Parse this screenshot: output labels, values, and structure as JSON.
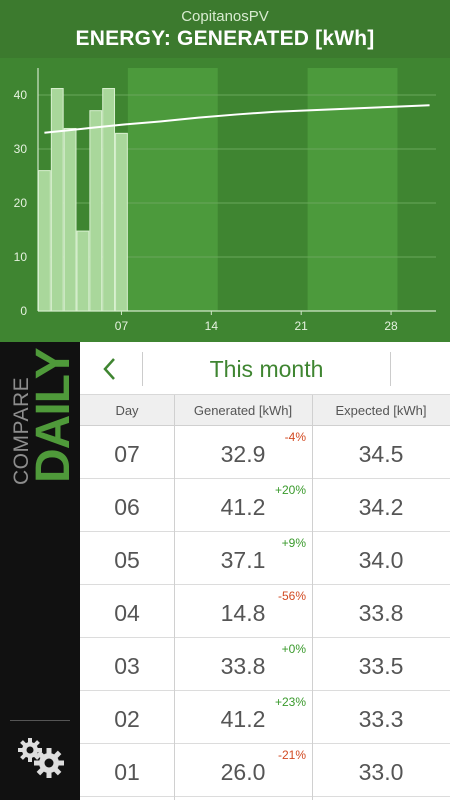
{
  "header": {
    "app_name": "CopitanosPV",
    "title": "ENERGY: GENERATED [kWh]"
  },
  "chart_data": {
    "type": "bar",
    "y_ticks": [
      "0",
      "10",
      "20",
      "30",
      "40"
    ],
    "x_ticks": [
      "07",
      "14",
      "21",
      "28"
    ],
    "ylim": [
      0,
      45
    ],
    "xlim": [
      0.5,
      31.5
    ],
    "days": [
      1,
      2,
      3,
      4,
      5,
      6,
      7
    ],
    "values": [
      26.0,
      41.2,
      33.8,
      14.8,
      37.1,
      41.2,
      32.9
    ],
    "expected_trend": {
      "x": [
        1,
        3,
        5,
        7,
        10,
        13,
        16,
        19,
        22,
        25,
        28,
        31
      ],
      "y": [
        33.0,
        33.5,
        34.0,
        34.5,
        35.1,
        35.8,
        36.4,
        36.9,
        37.2,
        37.5,
        37.8,
        38.1
      ]
    },
    "shaded_weeks": [
      [
        8,
        14
      ],
      [
        22,
        28
      ]
    ],
    "grid": true,
    "colors": {
      "bar_fill": "#a9d79b",
      "bar_edge": "#d9f0d0",
      "trend": "#ffffff",
      "plot_bg": "#3f8531",
      "shade": "#4c9a3c"
    }
  },
  "sidebar": {
    "compare_label": "COMPARE",
    "mode_label": "DAILY",
    "settings_icon": "gears-icon"
  },
  "nav": {
    "back_icon": "chevron-left-icon",
    "period_label": "This month"
  },
  "table": {
    "columns": [
      "Day",
      "Generated [kWh]",
      "Expected [kWh]"
    ],
    "rows": [
      {
        "day": "07",
        "generated": "32.9",
        "diff": "-4%",
        "sign": "neg",
        "expected": "34.5"
      },
      {
        "day": "06",
        "generated": "41.2",
        "diff": "+20%",
        "sign": "pos",
        "expected": "34.2"
      },
      {
        "day": "05",
        "generated": "37.1",
        "diff": "+9%",
        "sign": "pos",
        "expected": "34.0"
      },
      {
        "day": "04",
        "generated": "14.8",
        "diff": "-56%",
        "sign": "neg",
        "expected": "33.8"
      },
      {
        "day": "03",
        "generated": "33.8",
        "diff": "+0%",
        "sign": "pos",
        "expected": "33.5"
      },
      {
        "day": "02",
        "generated": "41.2",
        "diff": "+23%",
        "sign": "pos",
        "expected": "33.3"
      },
      {
        "day": "01",
        "generated": "26.0",
        "diff": "-21%",
        "sign": "neg",
        "expected": "33.0"
      }
    ]
  }
}
